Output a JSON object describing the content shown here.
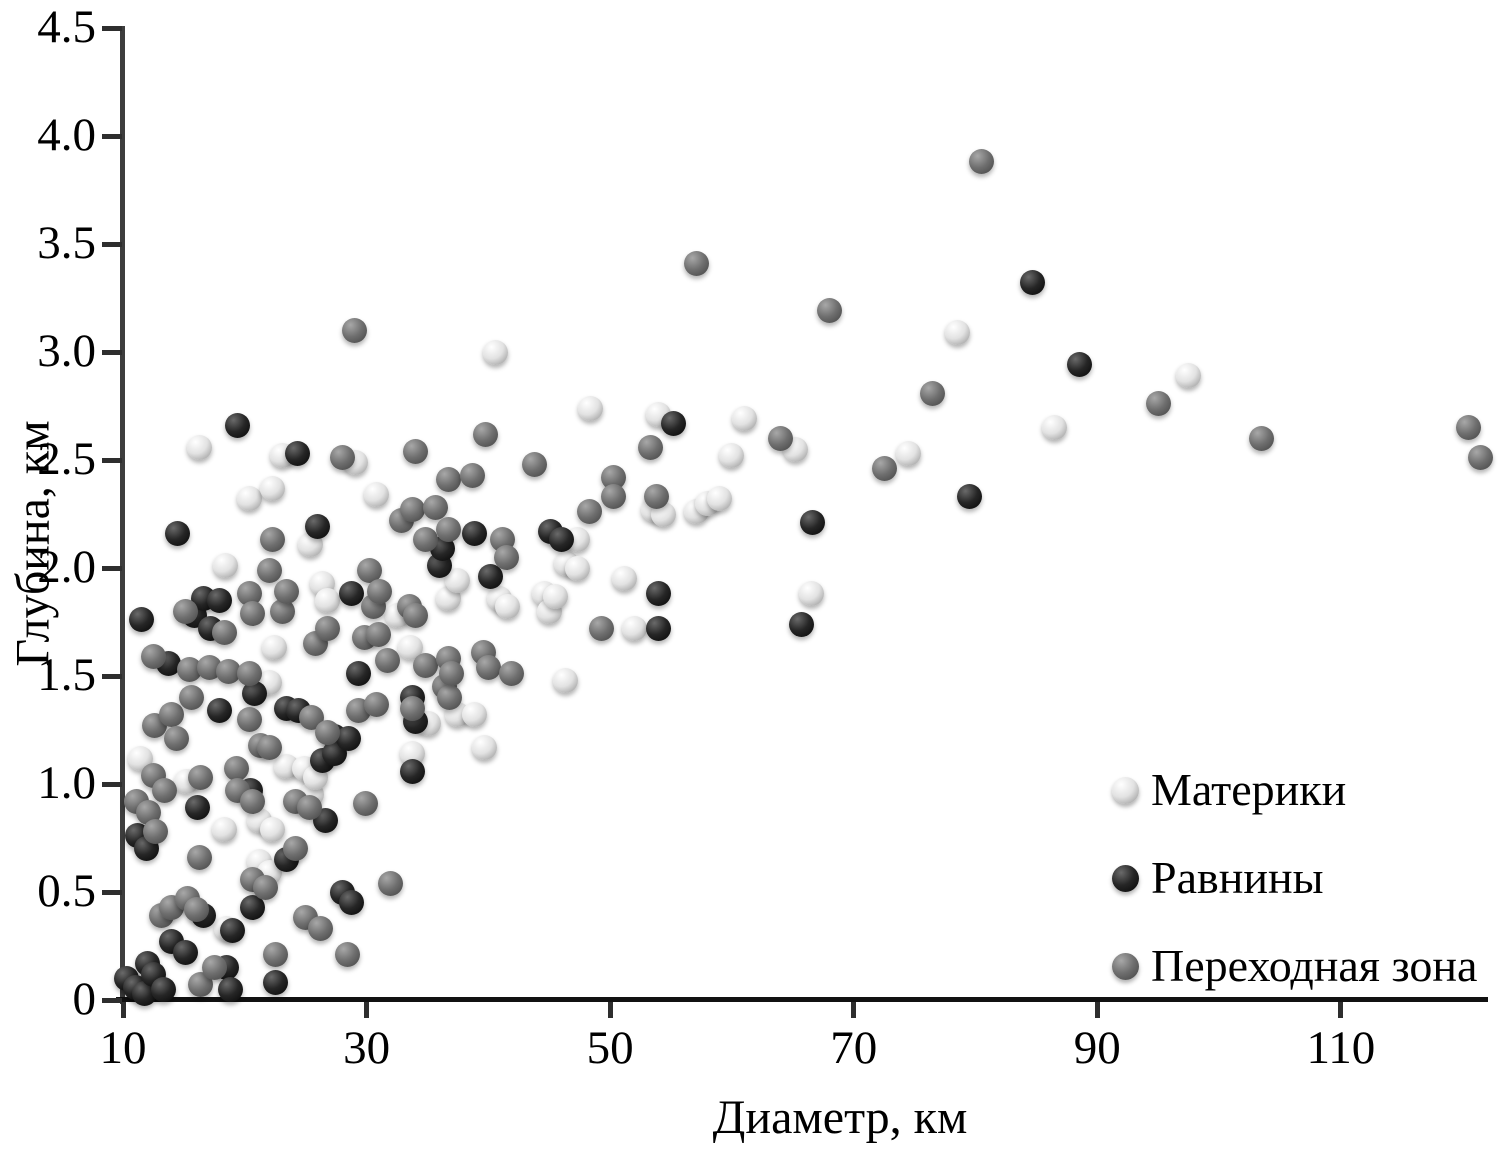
{
  "figure": {
    "kind": "scatter plot",
    "x_axis_label": "Диаметр, км",
    "y_axis_label": "Глубина, км"
  },
  "legend": {
    "items": [
      {
        "label": "Материки"
      },
      {
        "label": "Равнины"
      },
      {
        "label": "Переходная зона"
      }
    ]
  },
  "colors": {
    "axis": "#1a1a1a",
    "continents": {
      "highlight": "#ffffff",
      "base": "#e2e2e2",
      "shadow": "#8f8f8f"
    },
    "plains": {
      "highlight": "#6a6a6a",
      "base": "#262626",
      "shadow": "#050505"
    },
    "transition": {
      "highlight": "#a8a8a8",
      "base": "#6f6f6f",
      "shadow": "#424242"
    }
  },
  "chart_data": {
    "type": "scatter",
    "title": "",
    "xlabel": "Диаметр, км",
    "ylabel": "Глубина, км",
    "xlim": [
      10,
      122
    ],
    "ylim": [
      0,
      4.5
    ],
    "x_ticks": [
      10,
      30,
      50,
      70,
      90,
      110
    ],
    "x_tick_labels": [
      "10",
      "30",
      "50",
      "70",
      "90",
      "110"
    ],
    "y_ticks": [
      0,
      0.5,
      1.0,
      1.5,
      2.0,
      2.5,
      3.0,
      3.5,
      4.0,
      4.5
    ],
    "y_tick_labels": [
      "0",
      "0.5",
      "1.0",
      "1.5",
      "2.0",
      "2.5",
      "3.0",
      "3.5",
      "4.0",
      "4.5"
    ],
    "grid": false,
    "legend_position": "bottom-right",
    "series": [
      {
        "name": "Материки",
        "color_key": "continents",
        "points": [
          [
            11.4,
            1.12
          ],
          [
            15.2,
            1.01
          ],
          [
            16.3,
            2.56
          ],
          [
            18.3,
            0.79
          ],
          [
            18.4,
            2.01
          ],
          [
            18.5,
            0.33
          ],
          [
            20.4,
            2.32
          ],
          [
            21.2,
            0.83
          ],
          [
            21.2,
            0.64
          ],
          [
            22.0,
            1.47
          ],
          [
            22.0,
            0.59
          ],
          [
            22.3,
            2.37
          ],
          [
            22.3,
            0.79
          ],
          [
            22.4,
            1.63
          ],
          [
            23.1,
            2.52
          ],
          [
            23.4,
            1.08
          ],
          [
            24.9,
            1.07
          ],
          [
            25.4,
            2.11
          ],
          [
            25.5,
            0.95
          ],
          [
            25.8,
            1.03
          ],
          [
            26.4,
            1.93
          ],
          [
            26.8,
            1.85
          ],
          [
            29.1,
            2.49
          ],
          [
            30.8,
            2.34
          ],
          [
            32.5,
            1.78
          ],
          [
            33.6,
            1.63
          ],
          [
            33.8,
            1.14
          ],
          [
            35.1,
            1.28
          ],
          [
            36.7,
            1.86
          ],
          [
            37.5,
            1.94
          ],
          [
            37.5,
            1.32
          ],
          [
            38.9,
            1.32
          ],
          [
            39.7,
            1.17
          ],
          [
            40.6,
            3.0
          ],
          [
            40.9,
            1.86
          ],
          [
            41.6,
            1.82
          ],
          [
            44.6,
            1.88
          ],
          [
            45.0,
            1.8
          ],
          [
            45.5,
            1.87
          ],
          [
            46.3,
            1.48
          ],
          [
            46.4,
            2.02
          ],
          [
            47.3,
            2.13
          ],
          [
            47.3,
            2.0
          ],
          [
            48.4,
            2.74
          ],
          [
            51.2,
            1.95
          ],
          [
            52.0,
            1.72
          ],
          [
            53.6,
            2.27
          ],
          [
            54.0,
            2.71
          ],
          [
            54.4,
            2.25
          ],
          [
            57.1,
            2.26
          ],
          [
            58.0,
            2.3
          ],
          [
            59.0,
            2.32
          ],
          [
            60.0,
            2.52
          ],
          [
            61.0,
            2.69
          ],
          [
            65.2,
            2.55
          ],
          [
            66.5,
            1.88
          ],
          [
            74.5,
            2.53
          ],
          [
            78.5,
            3.09
          ],
          [
            86.5,
            2.65
          ],
          [
            97.5,
            2.89
          ]
        ]
      },
      {
        "name": "Равнины",
        "color_key": "plains",
        "points": [
          [
            10.3,
            0.1
          ],
          [
            11.0,
            0.06
          ],
          [
            11.2,
            0.76
          ],
          [
            11.5,
            1.76
          ],
          [
            11.8,
            0.03
          ],
          [
            11.9,
            0.7
          ],
          [
            12.0,
            0.17
          ],
          [
            12.5,
            0.12
          ],
          [
            13.3,
            0.05
          ],
          [
            13.7,
            1.56
          ],
          [
            14.0,
            0.27
          ],
          [
            14.5,
            2.16
          ],
          [
            15.1,
            0.22
          ],
          [
            15.9,
            1.78
          ],
          [
            16.1,
            0.89
          ],
          [
            16.6,
            1.86
          ],
          [
            16.6,
            0.39
          ],
          [
            17.2,
            1.72
          ],
          [
            17.9,
            1.85
          ],
          [
            17.9,
            1.34
          ],
          [
            18.5,
            0.15
          ],
          [
            18.8,
            0.05
          ],
          [
            19.0,
            0.32
          ],
          [
            19.4,
            2.66
          ],
          [
            20.5,
            0.97
          ],
          [
            20.6,
            0.43
          ],
          [
            20.8,
            1.42
          ],
          [
            22.5,
            0.08
          ],
          [
            23.4,
            1.35
          ],
          [
            23.4,
            0.65
          ],
          [
            24.3,
            2.53
          ],
          [
            24.4,
            1.34
          ],
          [
            26.0,
            2.19
          ],
          [
            26.4,
            1.11
          ],
          [
            26.6,
            0.83
          ],
          [
            27.4,
            1.22
          ],
          [
            27.4,
            1.14
          ],
          [
            28.0,
            0.5
          ],
          [
            28.5,
            1.21
          ],
          [
            28.8,
            1.88
          ],
          [
            28.8,
            0.45
          ],
          [
            29.3,
            1.51
          ],
          [
            33.8,
            1.4
          ],
          [
            33.8,
            1.06
          ],
          [
            34.0,
            1.29
          ],
          [
            36.0,
            2.01
          ],
          [
            36.2,
            2.09
          ],
          [
            38.9,
            2.16
          ],
          [
            40.2,
            1.96
          ],
          [
            45.1,
            2.17
          ],
          [
            46.0,
            2.13
          ],
          [
            54.0,
            1.88
          ],
          [
            54.0,
            1.72
          ],
          [
            55.2,
            2.67
          ],
          [
            65.7,
            1.74
          ],
          [
            66.6,
            2.21
          ],
          [
            79.5,
            2.33
          ],
          [
            84.7,
            3.32
          ],
          [
            88.5,
            2.94
          ]
        ]
      },
      {
        "name": "Переходная зона",
        "color_key": "transition",
        "points": [
          [
            11.1,
            0.92
          ],
          [
            12.1,
            0.87
          ],
          [
            12.5,
            1.59
          ],
          [
            12.5,
            1.04
          ],
          [
            12.6,
            1.27
          ],
          [
            12.7,
            0.78
          ],
          [
            13.2,
            0.39
          ],
          [
            13.4,
            0.97
          ],
          [
            14.0,
            1.32
          ],
          [
            14.0,
            0.43
          ],
          [
            14.4,
            1.21
          ],
          [
            15.1,
            1.8
          ],
          [
            15.3,
            0.47
          ],
          [
            15.5,
            1.53
          ],
          [
            15.6,
            1.4
          ],
          [
            16.0,
            0.42
          ],
          [
            16.3,
            0.66
          ],
          [
            16.4,
            1.03
          ],
          [
            16.4,
            0.07
          ],
          [
            17.1,
            1.54
          ],
          [
            17.5,
            0.15
          ],
          [
            18.3,
            1.7
          ],
          [
            18.7,
            1.52
          ],
          [
            19.3,
            1.07
          ],
          [
            19.4,
            0.97
          ],
          [
            20.4,
            1.88
          ],
          [
            20.4,
            1.51
          ],
          [
            20.4,
            1.3
          ],
          [
            20.6,
            1.79
          ],
          [
            20.6,
            0.92
          ],
          [
            20.6,
            0.56
          ],
          [
            21.3,
            1.18
          ],
          [
            21.7,
            0.52
          ],
          [
            22.0,
            1.99
          ],
          [
            22.0,
            1.17
          ],
          [
            22.3,
            2.13
          ],
          [
            22.5,
            0.21
          ],
          [
            23.1,
            1.8
          ],
          [
            23.4,
            1.89
          ],
          [
            24.2,
            0.92
          ],
          [
            24.2,
            0.7
          ],
          [
            25.0,
            0.38
          ],
          [
            25.3,
            0.89
          ],
          [
            25.5,
            1.31
          ],
          [
            25.8,
            1.65
          ],
          [
            26.2,
            0.33
          ],
          [
            26.8,
            1.72
          ],
          [
            26.8,
            1.24
          ],
          [
            28.0,
            2.51
          ],
          [
            28.4,
            0.21
          ],
          [
            29.0,
            3.1
          ],
          [
            29.3,
            1.34
          ],
          [
            29.8,
            1.68
          ],
          [
            29.9,
            0.91
          ],
          [
            30.2,
            1.99
          ],
          [
            30.6,
            1.82
          ],
          [
            30.8,
            1.37
          ],
          [
            31.0,
            1.69
          ],
          [
            31.1,
            1.89
          ],
          [
            31.7,
            1.57
          ],
          [
            32.0,
            0.54
          ],
          [
            32.9,
            2.22
          ],
          [
            33.5,
            1.82
          ],
          [
            33.8,
            2.27
          ],
          [
            33.8,
            1.35
          ],
          [
            34.0,
            2.54
          ],
          [
            34.0,
            1.78
          ],
          [
            34.8,
            2.13
          ],
          [
            34.8,
            1.55
          ],
          [
            35.7,
            2.28
          ],
          [
            36.4,
            1.45
          ],
          [
            36.7,
            2.41
          ],
          [
            36.7,
            2.18
          ],
          [
            36.7,
            1.58
          ],
          [
            36.8,
            1.4
          ],
          [
            37.0,
            1.51
          ],
          [
            38.7,
            2.43
          ],
          [
            39.6,
            1.61
          ],
          [
            39.8,
            2.62
          ],
          [
            40.0,
            1.54
          ],
          [
            41.2,
            2.13
          ],
          [
            41.5,
            2.05
          ],
          [
            41.9,
            1.51
          ],
          [
            43.8,
            2.48
          ],
          [
            48.3,
            2.26
          ],
          [
            49.3,
            1.72
          ],
          [
            50.3,
            2.42
          ],
          [
            50.3,
            2.33
          ],
          [
            53.3,
            2.56
          ],
          [
            53.8,
            2.33
          ],
          [
            57.1,
            3.41
          ],
          [
            64.0,
            2.6
          ],
          [
            68.0,
            3.19
          ],
          [
            72.5,
            2.46
          ],
          [
            76.5,
            2.81
          ],
          [
            80.5,
            3.88
          ],
          [
            95.0,
            2.76
          ],
          [
            103.5,
            2.6
          ],
          [
            120.5,
            2.65
          ],
          [
            121.5,
            2.51
          ]
        ]
      }
    ]
  }
}
